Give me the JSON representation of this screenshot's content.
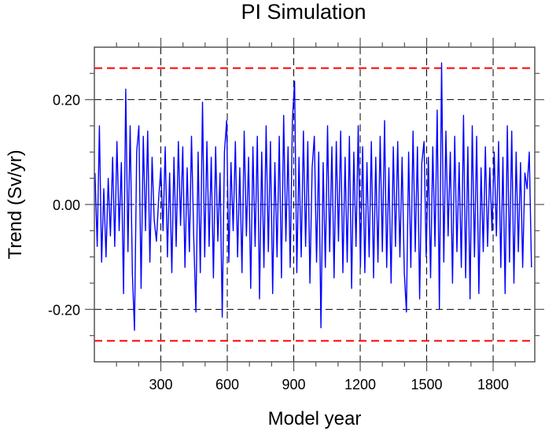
{
  "chart_data": {
    "type": "line",
    "title": "PI Simulation",
    "xlabel": "Model year",
    "ylabel": "Trend (Sv/yr)",
    "xlim": [
      0,
      1988
    ],
    "ylim": [
      -0.3,
      0.3
    ],
    "xticks": [
      300,
      600,
      900,
      1200,
      1500,
      1800
    ],
    "xtick_labels": [
      "300",
      "600",
      "900",
      "1200",
      "1500",
      "1800"
    ],
    "xminor_step": 100,
    "yticks": [
      0.2,
      0.0,
      -0.2
    ],
    "ytick_labels": [
      "0.20",
      "0.00",
      "-0.20"
    ],
    "yminor_step": 0.05,
    "grid": true,
    "reference_lines": [
      {
        "value": 0.26,
        "color": "#ff0000",
        "style": "dashed"
      },
      {
        "value": -0.26,
        "color": "#ff0000",
        "style": "dashed"
      }
    ],
    "series": [
      {
        "name": "trend",
        "color": "#0000ff",
        "x_start": 3,
        "x_step": 9.9,
        "values": [
          0.06,
          -0.08,
          0.15,
          -0.11,
          0.03,
          -0.1,
          0.05,
          -0.06,
          0.09,
          -0.08,
          0.12,
          -0.05,
          0.08,
          -0.17,
          0.22,
          -0.09,
          0.15,
          -0.13,
          -0.24,
          0.1,
          0.15,
          -0.16,
          0.13,
          -0.05,
          0.14,
          -0.11,
          0.09,
          -0.03,
          -0.07,
          0.01,
          0.07,
          -0.05,
          0.11,
          -0.1,
          0.06,
          -0.13,
          0.09,
          -0.08,
          0.12,
          -0.04,
          0.11,
          -0.12,
          0.07,
          -0.09,
          0.13,
          -0.06,
          -0.205,
          0.1,
          -0.13,
          0.195,
          -0.1,
          0.12,
          -0.08,
          0.09,
          -0.14,
          0.11,
          -0.07,
          0.06,
          -0.215,
          0.1,
          0.16,
          -0.11,
          0.08,
          -0.05,
          0.12,
          -0.1,
          0.07,
          -0.13,
          0.14,
          -0.06,
          0.09,
          -0.16,
          0.11,
          -0.08,
          0.13,
          -0.18,
          0.1,
          -0.12,
          0.15,
          -0.09,
          0.12,
          -0.17,
          0.08,
          -0.1,
          0.13,
          -0.14,
          0.17,
          -0.07,
          0.11,
          -0.12,
          0.16,
          0.235,
          -0.13,
          0.09,
          -0.1,
          0.14,
          -0.08,
          0.12,
          -0.15,
          0.07,
          0.13,
          -0.11,
          0.1,
          -0.235,
          0.08,
          -0.12,
          0.15,
          -0.09,
          0.11,
          -0.14,
          0.12,
          -0.07,
          0.14,
          -0.13,
          0.09,
          -0.11,
          0.13,
          -0.16,
          0.1,
          -0.08,
          0.15,
          -0.12,
          0.11,
          -0.13,
          0.08,
          -0.1,
          0.12,
          -0.14,
          0.09,
          -0.11,
          0.13,
          -0.09,
          0.16,
          -0.12,
          0.07,
          -0.15,
          0.11,
          -0.08,
          0.12,
          -0.1,
          0.09,
          -0.13,
          -0.205,
          0.1,
          -0.12,
          0.14,
          -0.09,
          0.11,
          -0.18,
          0.08,
          0.12,
          -0.1,
          0.09,
          -0.14,
          0.11,
          -0.08,
          0.18,
          -0.2,
          0.27,
          -0.11,
          0.14,
          -0.06,
          0.1,
          -0.15,
          0.13,
          -0.09,
          0.08,
          -0.12,
          0.17,
          -0.14,
          0.11,
          -0.18,
          0.15,
          -0.1,
          0.13,
          -0.17,
          0.07,
          -0.09,
          0.11,
          -0.08,
          0.07,
          -0.05,
          0.1,
          -0.06,
          0.12,
          -0.12,
          0.09,
          -0.17,
          0.15,
          -0.11,
          0.14,
          -0.15,
          0.1,
          -0.09,
          0.08,
          -0.12,
          0.06,
          0.03,
          0.1,
          -0.12
        ]
      }
    ]
  }
}
